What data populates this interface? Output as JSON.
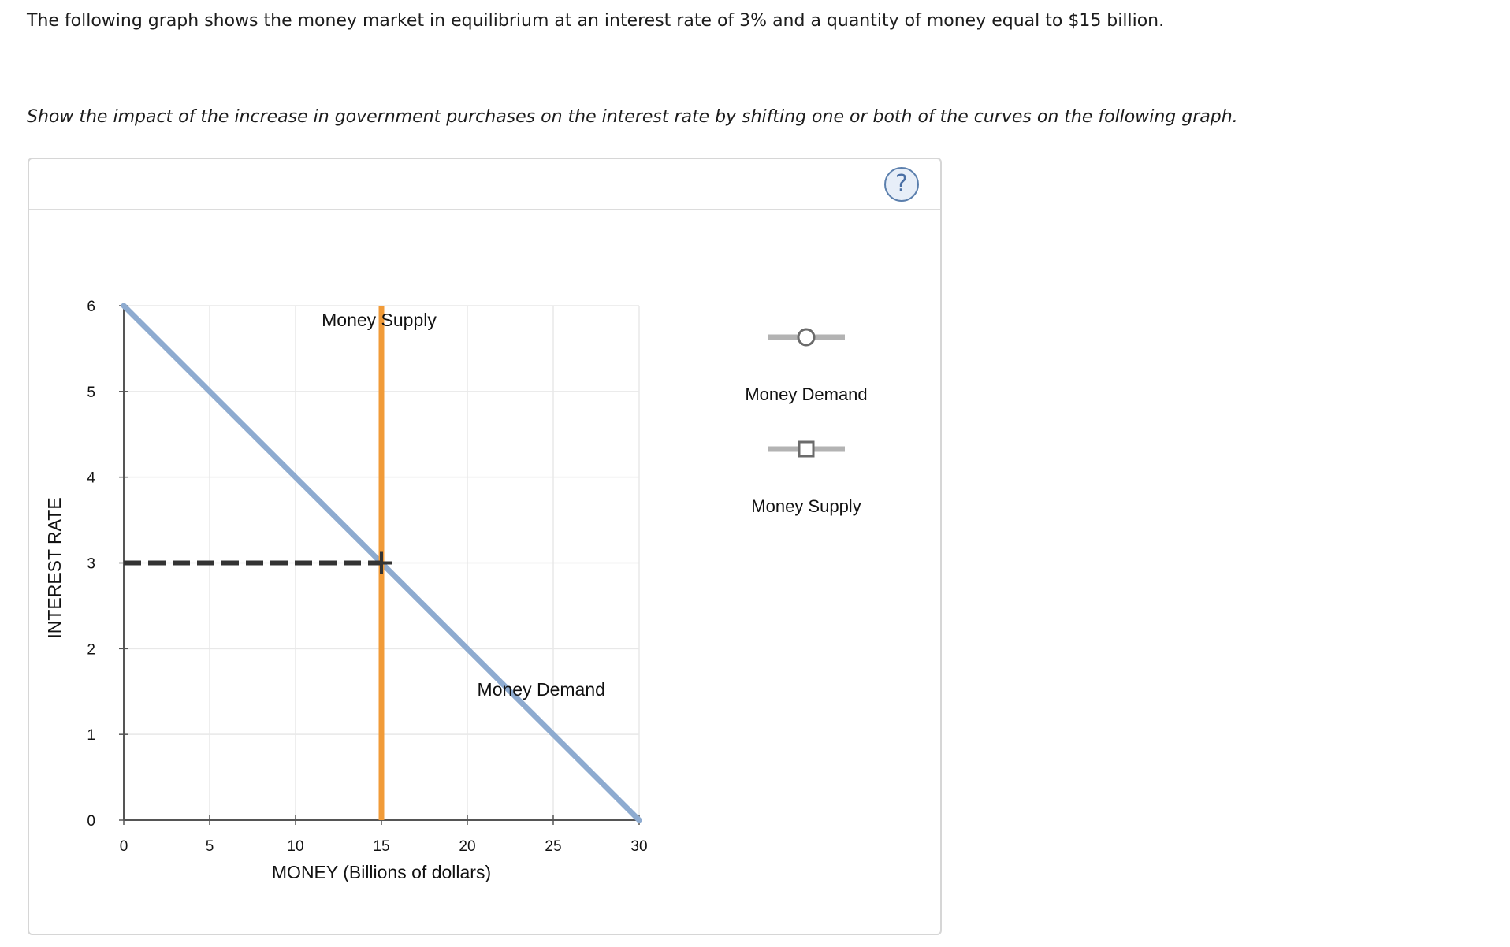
{
  "question": {
    "intro": "The following graph shows the money market in equilibrium at an interest rate of 3% and a quantity of money equal to $15 billion.",
    "instruction": "Show the impact of the increase in government purchases on the interest rate by shifting one or both of the curves on the following graph."
  },
  "help": {
    "label": "?"
  },
  "legend": {
    "items": [
      {
        "label": "Money Demand",
        "marker": "circle-handle-icon"
      },
      {
        "label": "Money Supply",
        "marker": "square-handle-icon"
      }
    ]
  },
  "chart_data": {
    "type": "line",
    "xlabel": "MONEY (Billions of dollars)",
    "ylabel": "INTEREST RATE",
    "xlim": [
      0,
      30
    ],
    "ylim": [
      0,
      6
    ],
    "xticks": [
      0,
      5,
      10,
      15,
      20,
      25,
      30
    ],
    "yticks": [
      0,
      1,
      2,
      3,
      4,
      5,
      6
    ],
    "grid": true,
    "series": [
      {
        "name": "Money Demand",
        "x": [
          0,
          30
        ],
        "y": [
          6,
          0
        ],
        "color": "#8eabd0"
      },
      {
        "name": "Money Supply",
        "x": [
          15,
          15
        ],
        "y": [
          0,
          6
        ],
        "color": "#f19b38"
      }
    ],
    "equilibrium": {
      "x": 15,
      "y": 3
    },
    "annotations": [
      {
        "text": "Money Supply",
        "anchor": "top of supply curve"
      },
      {
        "text": "Money Demand",
        "anchor": "lower right of demand curve"
      }
    ]
  }
}
